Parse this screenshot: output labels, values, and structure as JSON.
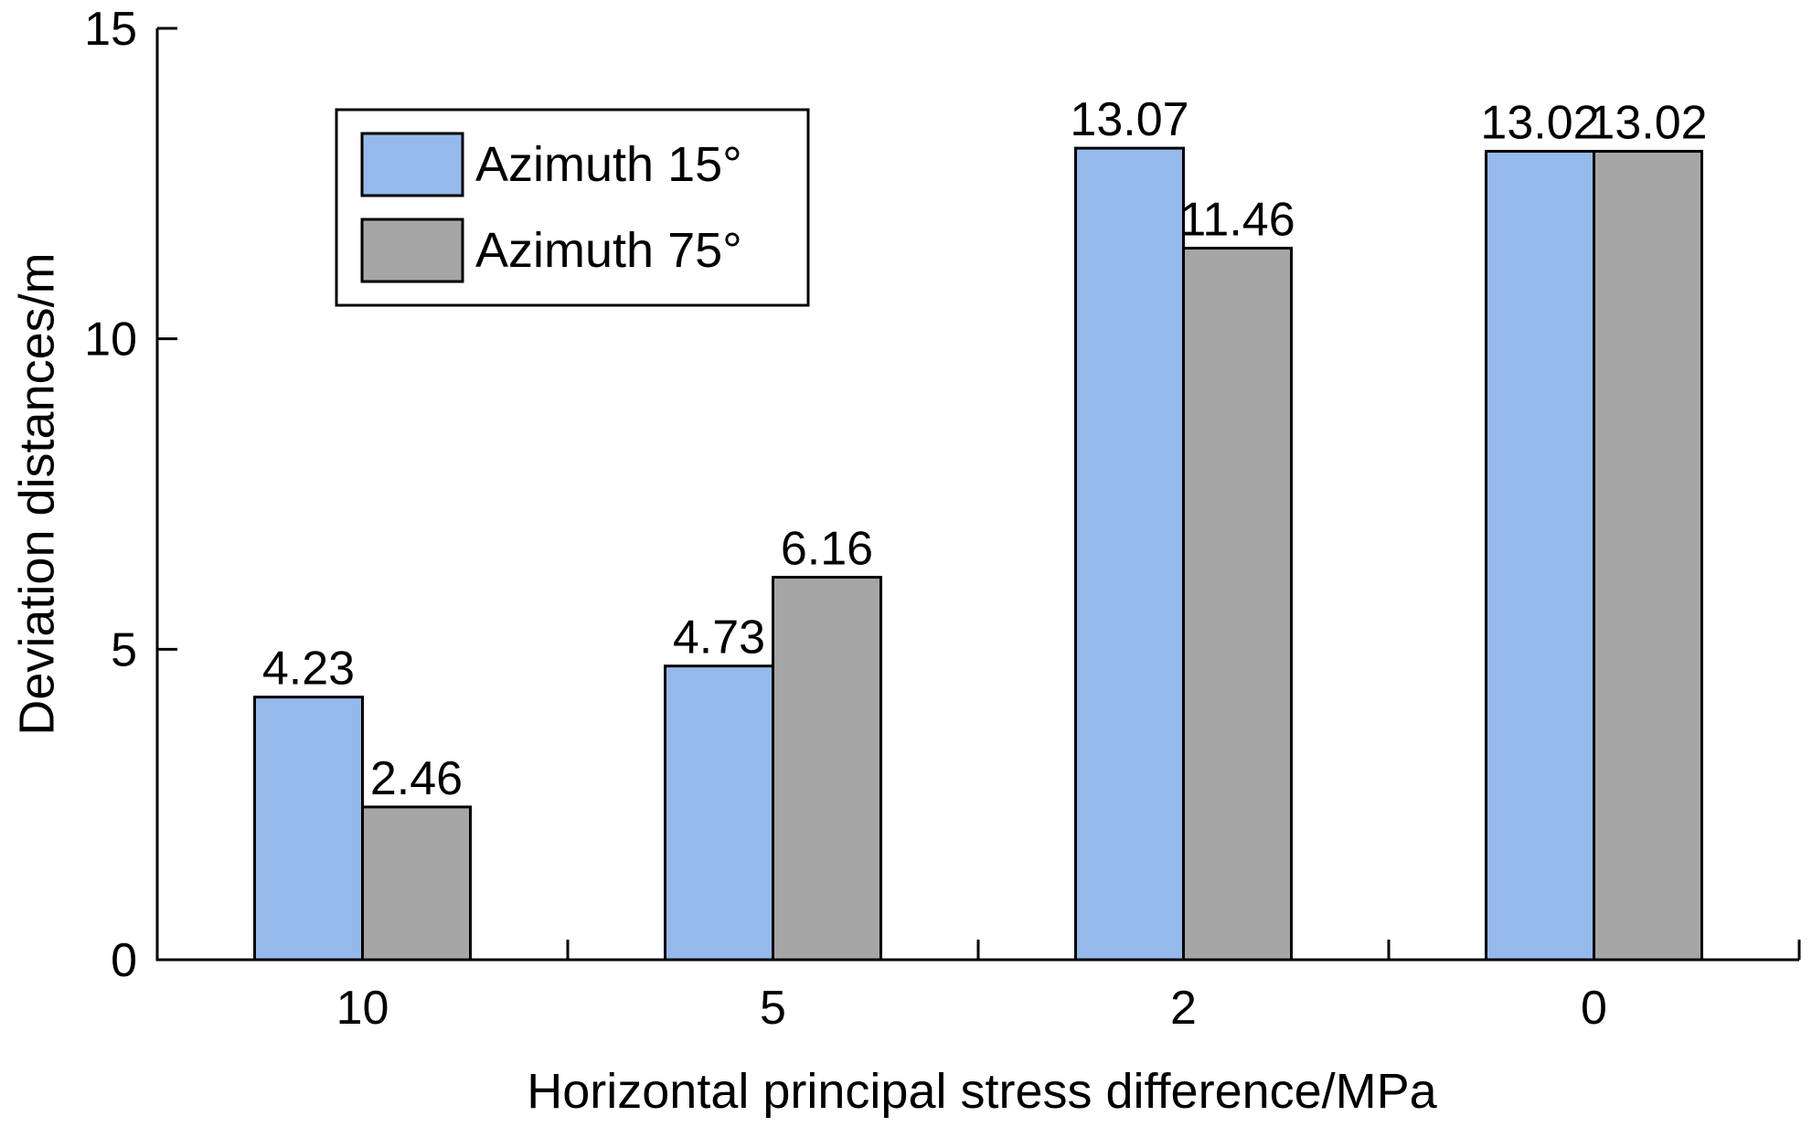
{
  "chart_data": {
    "type": "bar",
    "title": "",
    "xlabel": "Horizontal principal stress difference/MPa",
    "ylabel": "Deviation distances/m",
    "categories": [
      "10",
      "5",
      "2",
      "0"
    ],
    "ylim": [
      0,
      15
    ],
    "yticks": [
      "0",
      "5",
      "10",
      "15"
    ],
    "grid": false,
    "legend_position": "top-left",
    "series": [
      {
        "name": "Azimuth 15°",
        "color": "#95b9ea",
        "values": [
          4.23,
          4.73,
          13.07,
          13.02
        ],
        "labels": [
          "4.23",
          "4.73",
          "13.07",
          "13.02"
        ]
      },
      {
        "name": "Azimuth 75°",
        "color": "#a6a6a6",
        "values": [
          2.46,
          6.16,
          11.46,
          13.02
        ],
        "labels": [
          "2.46",
          "6.16",
          "11.46",
          "13.02"
        ]
      }
    ]
  }
}
